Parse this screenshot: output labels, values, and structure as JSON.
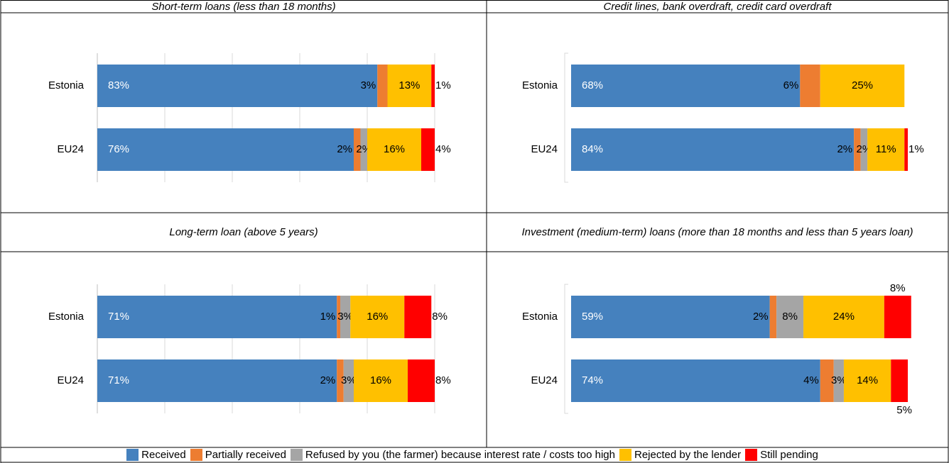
{
  "chart_data": [
    {
      "type": "stacked-bar",
      "title": "Short-term loans (less than 18 months)",
      "categories": [
        "Estonia",
        "EU24"
      ],
      "xlim": [
        0,
        100
      ],
      "xticks": [
        0,
        20,
        40,
        60,
        80,
        100
      ],
      "grid": true,
      "series": [
        {
          "name": "Received",
          "color": "#4581be",
          "values": [
            83,
            76
          ],
          "value_labels": [
            "83%",
            "76%"
          ]
        },
        {
          "name": "Partially received",
          "color": "#ed7d31",
          "values": [
            3,
            2
          ],
          "value_labels": [
            "3%",
            "2%"
          ]
        },
        {
          "name": "Refused by you (the farmer) because interest rate / costs too high",
          "color": "#a5a5a5",
          "values": [
            null,
            2
          ],
          "value_labels": [
            null,
            "2%"
          ]
        },
        {
          "name": "Rejected by the lender",
          "color": "#ffc000",
          "values": [
            13,
            16
          ],
          "value_labels": [
            "13%",
            "16%"
          ]
        },
        {
          "name": "Still pending",
          "color": "#ff0000",
          "values": [
            1,
            4
          ],
          "value_labels": [
            "1%",
            "4%"
          ]
        }
      ]
    },
    {
      "type": "stacked-bar",
      "title": "Credit lines, bank overdraft, credit card overdraft",
      "categories": [
        "Estonia",
        "EU24"
      ],
      "xlim": [
        0,
        100
      ],
      "grid": false,
      "series": [
        {
          "name": "Received",
          "color": "#4581be",
          "values": [
            68,
            84
          ],
          "value_labels": [
            "68%",
            "84%"
          ]
        },
        {
          "name": "Partially received",
          "color": "#ed7d31",
          "values": [
            6,
            2
          ],
          "value_labels": [
            "6%",
            "2%"
          ]
        },
        {
          "name": "Refused by you (the farmer) because interest rate / costs too high",
          "color": "#a5a5a5",
          "values": [
            null,
            2
          ],
          "value_labels": [
            null,
            "2%"
          ]
        },
        {
          "name": "Rejected by the lender",
          "color": "#ffc000",
          "values": [
            25,
            11
          ],
          "value_labels": [
            "25%",
            "11%"
          ]
        },
        {
          "name": "Still pending",
          "color": "#ff0000",
          "values": [
            null,
            1
          ],
          "value_labels": [
            null,
            "1%"
          ]
        }
      ]
    },
    {
      "type": "stacked-bar",
      "title": "Long-term loan (above 5 years)",
      "categories": [
        "Estonia",
        "EU24"
      ],
      "xlim": [
        0,
        100
      ],
      "xticks": [
        0,
        20,
        40,
        60,
        80,
        100
      ],
      "grid": true,
      "series": [
        {
          "name": "Received",
          "color": "#4581be",
          "values": [
            71,
            71
          ],
          "value_labels": [
            "71%",
            "71%"
          ]
        },
        {
          "name": "Partially received",
          "color": "#ed7d31",
          "values": [
            1,
            2
          ],
          "value_labels": [
            "1%",
            "2%"
          ]
        },
        {
          "name": "Refused by you (the farmer) because interest rate / costs too high",
          "color": "#a5a5a5",
          "values": [
            3,
            3
          ],
          "value_labels": [
            "3%",
            "3%"
          ]
        },
        {
          "name": "Rejected by the lender",
          "color": "#ffc000",
          "values": [
            16,
            16
          ],
          "value_labels": [
            "16%",
            "16%"
          ]
        },
        {
          "name": "Still pending",
          "color": "#ff0000",
          "values": [
            8,
            8
          ],
          "value_labels": [
            "8%",
            "8%"
          ]
        }
      ]
    },
    {
      "type": "stacked-bar",
      "title": "Investment (medium-term) loans (more than 18 months and less than 5 years loan)",
      "categories": [
        "Estonia",
        "EU24"
      ],
      "xlim": [
        0,
        100
      ],
      "grid": false,
      "series": [
        {
          "name": "Received",
          "color": "#4581be",
          "values": [
            59,
            74
          ],
          "value_labels": [
            "59%",
            "74%"
          ]
        },
        {
          "name": "Partially received",
          "color": "#ed7d31",
          "values": [
            2,
            4
          ],
          "value_labels": [
            "2%",
            "4%"
          ]
        },
        {
          "name": "Refused by you (the farmer) because interest rate / costs too high",
          "color": "#a5a5a5",
          "values": [
            8,
            3
          ],
          "value_labels": [
            "8%",
            "3%"
          ]
        },
        {
          "name": "Rejected by the lender",
          "color": "#ffc000",
          "values": [
            24,
            14
          ],
          "value_labels": [
            "24%",
            "14%"
          ]
        },
        {
          "name": "Still pending",
          "color": "#ff0000",
          "values": [
            8,
            5
          ],
          "value_labels": [
            "8%",
            "5%"
          ]
        }
      ]
    }
  ]
}
